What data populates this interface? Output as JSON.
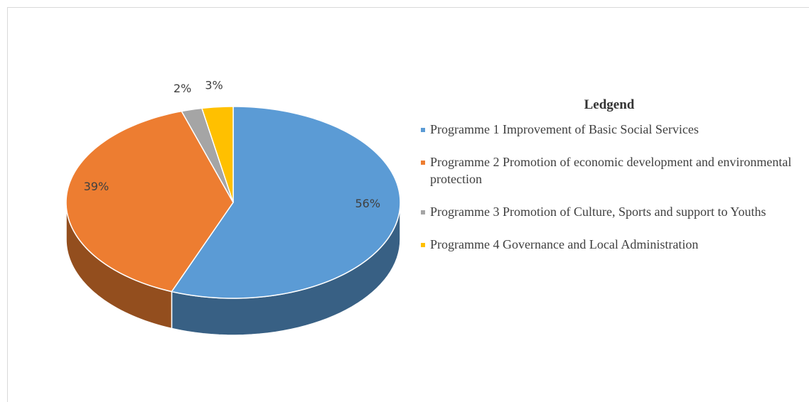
{
  "chart_data": {
    "type": "pie",
    "legend_title": "Ledgend",
    "categories": [
      "Programme 1 Improvement of Basic Social Services",
      "Programme 2 Promotion of economic development and environmental protection",
      "Programme 3 Promotion of Culture, Sports and support to Youths",
      "Programme 4 Governance and Local Administration"
    ],
    "values": [
      56,
      39,
      2,
      3
    ],
    "value_labels": [
      "56%",
      "39%",
      "2%",
      "3%"
    ],
    "colors": [
      "#5b9bd5",
      "#ed7d31",
      "#a5a5a5",
      "#ffc000"
    ],
    "legend": "right"
  }
}
